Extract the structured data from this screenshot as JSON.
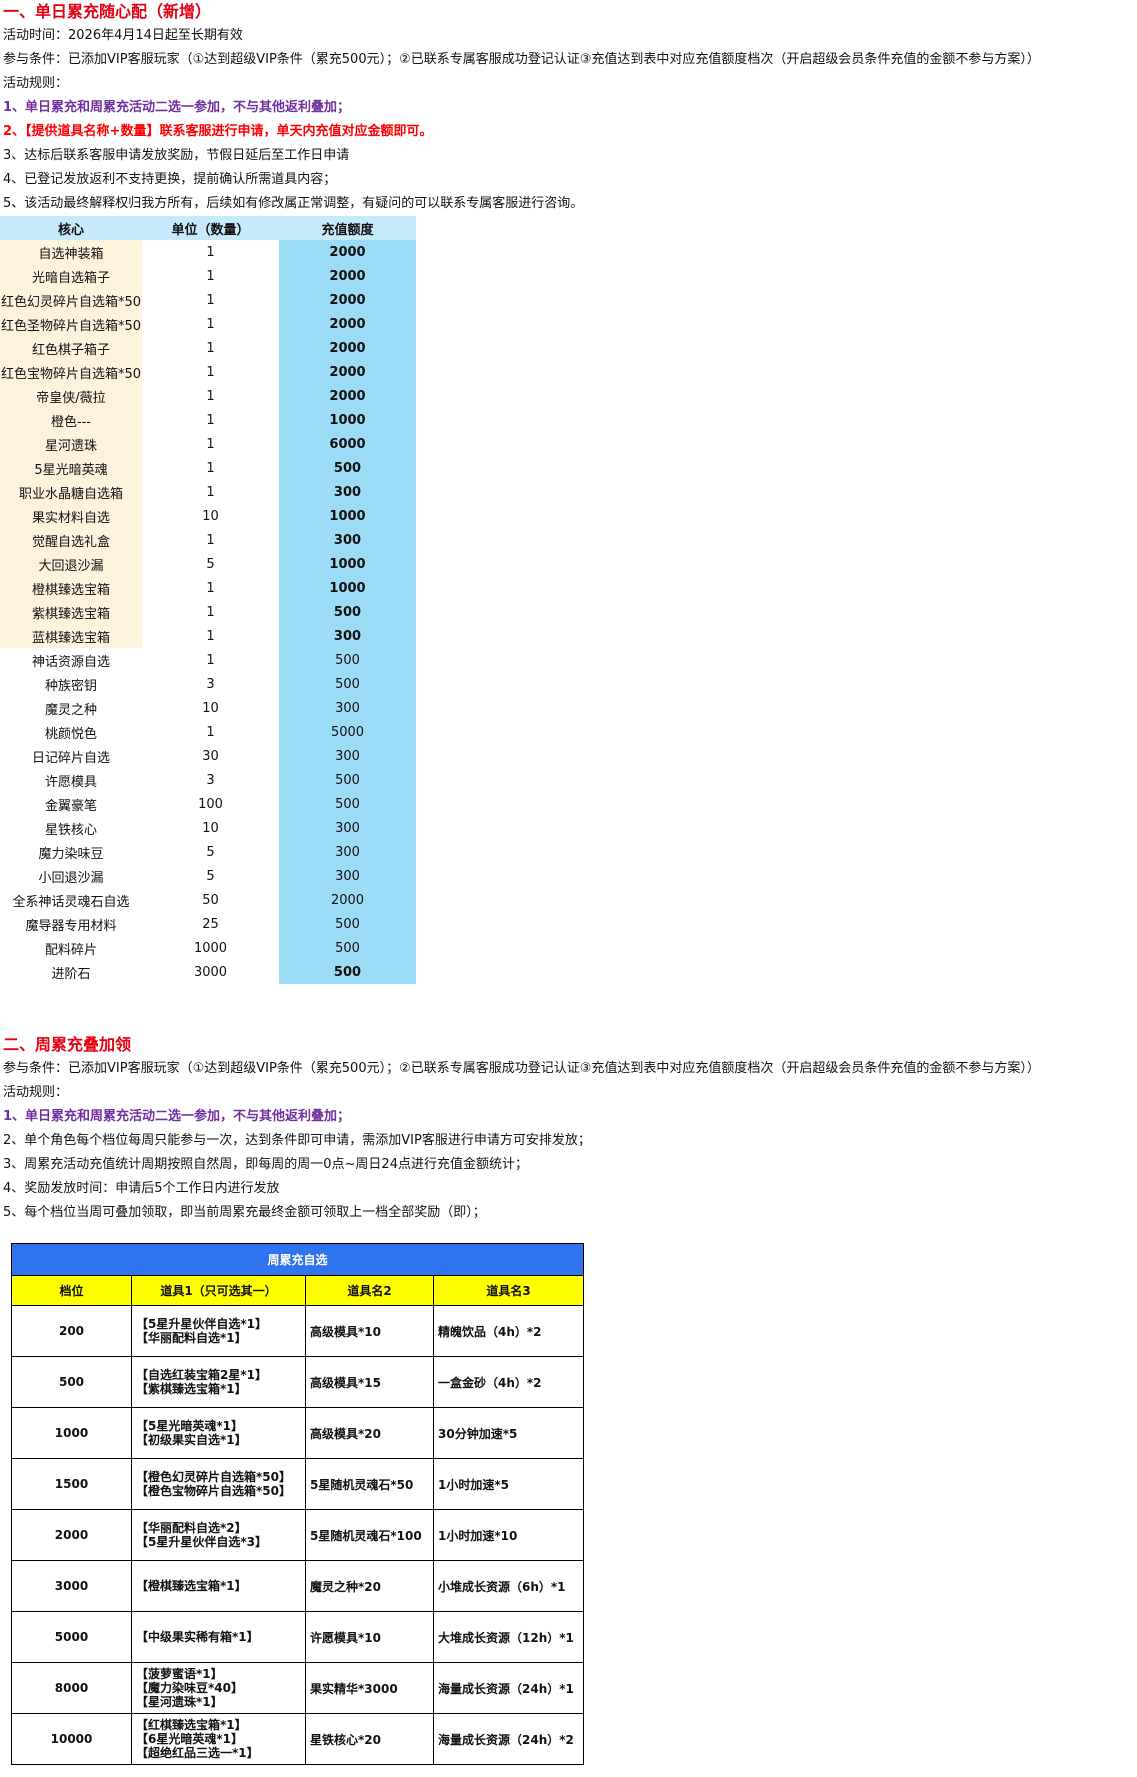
{
  "section1": {
    "title": "一、单日累充随心配（新增）",
    "period": "活动时间：2026年4月14日起至长期有效",
    "condition": "参与条件：已添加VIP客服玩家（①达到超级VIP条件（累充500元）；②已联系专属客服成功登记认证③充值达到表中对应充值额度档次（开启超级会员条件充值的金额不参与方案））",
    "rules_label": "活动规则：",
    "rules": [
      "1、单日累充和周累充活动二选一参加，不与其他返利叠加；",
      "2、【提供道具名称+数量】联系客服进行申请，单天内充值对应金额即可。",
      "3、达标后联系客服申请发放奖励，节假日延后至工作日申请",
      "4、已登记发放返利不支持更换，提前确认所需道具内容；",
      "5、该活动最终解释权归我方所有，后续如有修改属正常调整，有疑问的可以联系专属客服进行咨询。"
    ],
    "table": {
      "header": [
        "核心",
        "单位（数量）",
        "充值额度"
      ],
      "rows": [
        [
          "自选神装箱",
          1,
          2000
        ],
        [
          "光暗自选箱子",
          1,
          2000
        ],
        [
          "红色幻灵碎片自选箱*50",
          1,
          2000
        ],
        [
          "红色圣物碎片自选箱*50",
          1,
          2000
        ],
        [
          "红色棋子箱子",
          1,
          2000
        ],
        [
          "红色宝物碎片自选箱*50",
          1,
          2000
        ],
        [
          "帝皇侠/薇拉",
          1,
          2000
        ],
        [
          "橙色---",
          1,
          1000
        ],
        [
          "星河遗珠",
          1,
          6000
        ],
        [
          "5星光暗英魂",
          1,
          500
        ],
        [
          "职业水晶糖自选箱",
          1,
          300
        ],
        [
          "果实材料自选",
          10,
          1000
        ],
        [
          "觉醒自选礼盒",
          1,
          300
        ],
        [
          "大回退沙漏",
          5,
          1000
        ],
        [
          "橙棋臻选宝箱",
          1,
          1000
        ],
        [
          "紫棋臻选宝箱",
          1,
          500
        ],
        [
          "蓝棋臻选宝箱",
          1,
          300
        ],
        [
          "神话资源自选",
          1,
          500
        ],
        [
          "种族密钥",
          3,
          500
        ],
        [
          "魔灵之种",
          10,
          300
        ],
        [
          "桃颜悦色",
          1,
          5000
        ],
        [
          "日记碎片自选",
          30,
          300
        ],
        [
          "许愿模具",
          3,
          500
        ],
        [
          "金翼豪笔",
          100,
          500
        ],
        [
          "星铁核心",
          10,
          300
        ],
        [
          "魔力染味豆",
          5,
          300
        ],
        [
          "小回退沙漏",
          5,
          300
        ],
        [
          "全系神话灵魂石自选",
          50,
          2000
        ],
        [
          "魔导器专用材料",
          25,
          500
        ],
        [
          "配料碎片",
          1000,
          500
        ],
        [
          "进阶石",
          3000,
          500
        ]
      ]
    }
  },
  "section2": {
    "title": "二、周累充叠加领",
    "condition": "参与条件：已添加VIP客服玩家（①达到超级VIP条件（累充500元）；②已联系专属客服成功登记认证③充值达到表中对应充值额度档次（开启超级会员条件充值的金额不参与方案））",
    "rules_label": "活动规则：",
    "rules": [
      "1、单日累充和周累充活动二选一参加，不与其他返利叠加；",
      "2、单个角色每个档位每周只能参与一次，达到条件即可申请，需添加VIP客服进行申请方可安排发放；",
      "3、周累充活动充值统计周期按照自然周，即每周的周一0点~周日24点进行充值金额统计；",
      "4、奖励发放时间：申请后5个工作日内进行发放",
      "5、每个档位当周可叠加领取，即当前周累充最终金额可领取上一档全部奖励（即）；"
    ],
    "table": {
      "title": "周累充自选",
      "header": [
        "档位",
        "道具1（只可选其一）",
        "道具名2",
        "道具名3"
      ],
      "rows": [
        [
          200,
          [
            "【5星升星伙伴自选*1】",
            "【华丽配料自选*1】"
          ],
          "高级模具*10",
          "精魄饮品（4h）*2"
        ],
        [
          500,
          [
            "【自选红装宝箱2星*1】",
            "【紫棋臻选宝箱*1】"
          ],
          "高级模具*15",
          "一盒金砂（4h）*2"
        ],
        [
          1000,
          [
            "【5星光暗英魂*1】",
            "【初级果实自选*1】"
          ],
          "高级模具*20",
          "30分钟加速*5"
        ],
        [
          1500,
          [
            "【橙色幻灵碎片自选箱*50】",
            "【橙色宝物碎片自选箱*50】"
          ],
          "5星随机灵魂石*50",
          "1小时加速*5"
        ],
        [
          2000,
          [
            "【华丽配料自选*2】",
            "【5星升星伙伴自选*3】"
          ],
          "5星随机灵魂石*100",
          "1小时加速*10"
        ],
        [
          3000,
          [
            "【橙棋臻选宝箱*1】"
          ],
          "魔灵之种*20",
          "小堆成长资源（6h）*1"
        ],
        [
          5000,
          [
            "【中级果实稀有箱*1】"
          ],
          "许愿模具*10",
          "大堆成长资源（12h）*1"
        ],
        [
          8000,
          [
            "【菠萝蜜语*1】",
            "【魔力染味豆*40】",
            "【星河遗珠*1】"
          ],
          "果实精华*3000",
          "海量成长资源（24h）*1"
        ],
        [
          10000,
          [
            "【红棋臻选宝箱*1】",
            "【6星光暗英魂*1】",
            "【超绝红品三选一*1】"
          ],
          "星铁核心*20",
          "海量成长资源（24h）*2"
        ]
      ]
    }
  }
}
